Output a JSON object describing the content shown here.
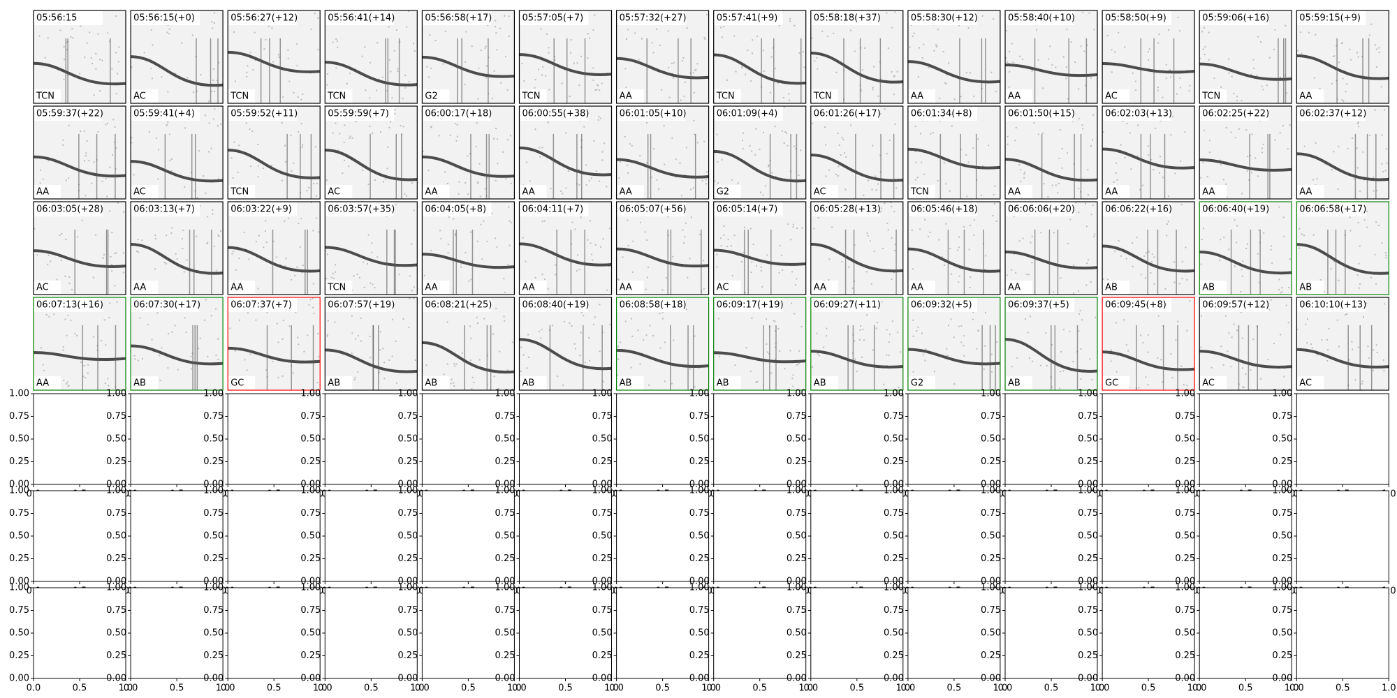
{
  "panels": [
    {
      "time": "05:56:15",
      "label": "TCN",
      "border": "black"
    },
    {
      "time": "05:56:15(+0)",
      "label": "AC",
      "border": "black"
    },
    {
      "time": "05:56:27(+12)",
      "label": "TCN",
      "border": "black"
    },
    {
      "time": "05:56:41(+14)",
      "label": "TCN",
      "border": "black"
    },
    {
      "time": "05:56:58(+17)",
      "label": "G2",
      "border": "black"
    },
    {
      "time": "05:57:05(+7)",
      "label": "TCN",
      "border": "black"
    },
    {
      "time": "05:57:32(+27)",
      "label": "AA",
      "border": "black"
    },
    {
      "time": "05:57:41(+9)",
      "label": "TCN",
      "border": "black"
    },
    {
      "time": "05:58:18(+37)",
      "label": "TCN",
      "border": "black"
    },
    {
      "time": "05:58:30(+12)",
      "label": "AA",
      "border": "black"
    },
    {
      "time": "05:58:40(+10)",
      "label": "AA",
      "border": "black"
    },
    {
      "time": "05:58:50(+9)",
      "label": "AC",
      "border": "black"
    },
    {
      "time": "05:59:06(+16)",
      "label": "TCN",
      "border": "black"
    },
    {
      "time": "05:59:15(+9)",
      "label": "AA",
      "border": "black"
    },
    {
      "time": "05:59:37(+22)",
      "label": "AA",
      "border": "black"
    },
    {
      "time": "05:59:41(+4)",
      "label": "AC",
      "border": "black"
    },
    {
      "time": "05:59:52(+11)",
      "label": "TCN",
      "border": "black"
    },
    {
      "time": "05:59:59(+7)",
      "label": "AC",
      "border": "black"
    },
    {
      "time": "06:00:17(+18)",
      "label": "AA",
      "border": "black"
    },
    {
      "time": "06:00:55(+38)",
      "label": "AA",
      "border": "black"
    },
    {
      "time": "06:01:05(+10)",
      "label": "AA",
      "border": "black"
    },
    {
      "time": "06:01:09(+4)",
      "label": "G2",
      "border": "black"
    },
    {
      "time": "06:01:26(+17)",
      "label": "AC",
      "border": "black"
    },
    {
      "time": "06:01:34(+8)",
      "label": "TCN",
      "border": "black"
    },
    {
      "time": "06:01:50(+15)",
      "label": "AA",
      "border": "black"
    },
    {
      "time": "06:02:03(+13)",
      "label": "AA",
      "border": "black"
    },
    {
      "time": "06:02:25(+22)",
      "label": "AA",
      "border": "black"
    },
    {
      "time": "06:02:37(+12)",
      "label": "AA",
      "border": "black"
    },
    {
      "time": "06:03:05(+28)",
      "label": "AC",
      "border": "black"
    },
    {
      "time": "06:03:13(+7)",
      "label": "AA",
      "border": "black"
    },
    {
      "time": "06:03:22(+9)",
      "label": "AA",
      "border": "black"
    },
    {
      "time": "06:03:57(+35)",
      "label": "TCN",
      "border": "black"
    },
    {
      "time": "06:04:05(+8)",
      "label": "AA",
      "border": "black"
    },
    {
      "time": "06:04:11(+7)",
      "label": "AA",
      "border": "black"
    },
    {
      "time": "06:05:07(+56)",
      "label": "AA",
      "border": "black"
    },
    {
      "time": "06:05:14(+7)",
      "label": "AC",
      "border": "black"
    },
    {
      "time": "06:05:28(+13)",
      "label": "AA",
      "border": "black"
    },
    {
      "time": "06:05:46(+18)",
      "label": "AA",
      "border": "black"
    },
    {
      "time": "06:06:06(+20)",
      "label": "AA",
      "border": "black"
    },
    {
      "time": "06:06:22(+16)",
      "label": "AB",
      "border": "black"
    },
    {
      "time": "06:06:40(+19)",
      "label": "AB",
      "border": "green"
    },
    {
      "time": "06:06:58(+17)",
      "label": "AB",
      "border": "green"
    },
    {
      "time": "06:07:13(+16)",
      "label": "AA",
      "border": "green"
    },
    {
      "time": "06:07:30(+17)",
      "label": "AB",
      "border": "green"
    },
    {
      "time": "06:07:37(+7)",
      "label": "GC",
      "border": "red"
    },
    {
      "time": "06:07:57(+19)",
      "label": "AB",
      "border": "black"
    },
    {
      "time": "06:08:21(+25)",
      "label": "AB",
      "border": "black"
    },
    {
      "time": "06:08:40(+19)",
      "label": "AB",
      "border": "black"
    },
    {
      "time": "06:08:58(+18)",
      "label": "AB",
      "border": "green"
    },
    {
      "time": "06:09:17(+19)",
      "label": "AB",
      "border": "green"
    },
    {
      "time": "06:09:27(+11)",
      "label": "AB",
      "border": "green"
    },
    {
      "time": "06:09:32(+5)",
      "label": "G2",
      "border": "green"
    },
    {
      "time": "06:09:37(+5)",
      "label": "AB",
      "border": "green"
    },
    {
      "time": "06:09:45(+8)",
      "label": "GC",
      "border": "red"
    },
    {
      "time": "06:09:57(+12)",
      "label": "AC",
      "border": "black"
    },
    {
      "time": "06:10:10(+13)",
      "label": "AC",
      "border": "black"
    }
  ],
  "empty_axes": {
    "xlim": [
      0,
      1
    ],
    "ylim": [
      0,
      1
    ],
    "xticks": [
      {
        "value": 0,
        "label": "0.0"
      },
      {
        "value": 0.5,
        "label": "0.5"
      },
      {
        "value": 1,
        "label": "1.0"
      }
    ],
    "yticks": [
      {
        "value": 0,
        "label": "0.00"
      },
      {
        "value": 0.25,
        "label": "0.25"
      },
      {
        "value": 0.5,
        "label": "0.50"
      },
      {
        "value": 0.75,
        "label": "0.75"
      },
      {
        "value": 1,
        "label": "1.00"
      }
    ]
  }
}
